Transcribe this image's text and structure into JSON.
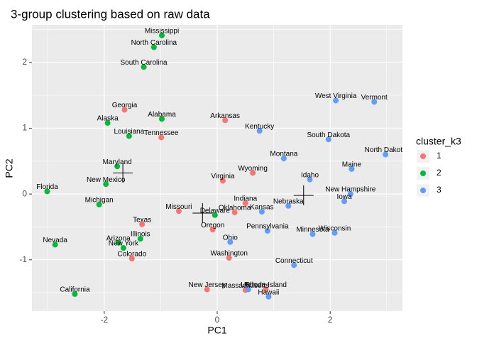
{
  "chart_data": {
    "type": "scatter",
    "title": "3-group clustering based on raw data",
    "x_label": "PC1",
    "y_label": "PC2",
    "legend_title": "cluster_k3",
    "xlim": [
      -3.28,
      3.28
    ],
    "ylim": [
      -1.78,
      2.57
    ],
    "xticks": [
      -2,
      0,
      2
    ],
    "yticks": [
      -1,
      0,
      1,
      2
    ],
    "xminor": [
      -3,
      -1,
      1,
      3
    ],
    "yminor": [
      -1.5,
      -0.5,
      0.5,
      1.5,
      2.5
    ],
    "grid": true,
    "legend": "right",
    "series": [
      {
        "name": "1",
        "color": "#F8766D",
        "labels": [
          "Georgia",
          "Tennessee",
          "Arkansas",
          "Wyoming",
          "Virginia",
          "Indiana",
          "Oklahoma",
          "Missouri",
          "Texas",
          "Oregon",
          "Colorado",
          "Washington",
          "New Jersey",
          "Massachusetts",
          "Rhode Island"
        ],
        "x": [
          -1.64,
          -0.99,
          0.14,
          0.63,
          0.1,
          0.5,
          0.31,
          -0.68,
          -1.33,
          -0.08,
          -1.51,
          0.21,
          -0.18,
          0.5,
          0.86
        ],
        "y": [
          1.28,
          0.86,
          1.12,
          0.32,
          0.2,
          -0.14,
          -0.28,
          -0.26,
          -0.46,
          -0.54,
          -0.98,
          -0.97,
          -1.45,
          -1.46,
          -1.45
        ]
      },
      {
        "name": "2",
        "color": "#00BA38",
        "labels": [
          "Mississippi",
          "North Carolina",
          "South Carolina",
          "Alaska",
          "Alabama",
          "Louisiana",
          "Maryland",
          "New Mexico",
          "Florida",
          "Michigan",
          "Delaware",
          "Illinois",
          "Arizona",
          "New York",
          "Nevada",
          "California"
        ],
        "x": [
          -0.98,
          -1.12,
          -1.3,
          -1.94,
          -0.98,
          -1.56,
          -1.77,
          -1.97,
          -3.01,
          -2.09,
          -0.04,
          -1.36,
          -1.75,
          -1.66,
          -2.87,
          -2.52
        ],
        "y": [
          2.41,
          2.23,
          1.93,
          1.08,
          1.14,
          0.88,
          0.42,
          0.15,
          0.04,
          -0.16,
          -0.32,
          -0.68,
          -0.74,
          -0.82,
          -0.77,
          -1.52
        ]
      },
      {
        "name": "3",
        "color": "#619CFF",
        "labels": [
          "Kentucky",
          "West Virginia",
          "Vermont",
          "South Dakota",
          "North Dakota",
          "Montana",
          "Maine",
          "Idaho",
          "New Hampshire",
          "Iowa",
          "Nebraska",
          "Kansas",
          "Pennsylvania",
          "Minnesota",
          "Wisconsin",
          "Ohio",
          "Connecticut",
          "Utah",
          "Hawaii"
        ],
        "x": [
          0.75,
          2.1,
          2.78,
          1.97,
          2.98,
          1.18,
          2.38,
          1.64,
          2.36,
          2.25,
          1.26,
          0.79,
          0.89,
          1.69,
          2.08,
          0.23,
          1.36,
          0.55,
          0.91
        ],
        "y": [
          0.96,
          1.42,
          1.4,
          0.83,
          0.6,
          0.54,
          0.38,
          0.22,
          0.0,
          -0.11,
          -0.18,
          -0.27,
          -0.56,
          -0.61,
          -0.59,
          -0.73,
          -1.08,
          -1.45,
          -1.56
        ]
      }
    ],
    "centers": {
      "x": [
        -1.67,
        -0.26,
        1.53
      ],
      "y": [
        0.32,
        -0.29,
        -0.02
      ]
    }
  }
}
